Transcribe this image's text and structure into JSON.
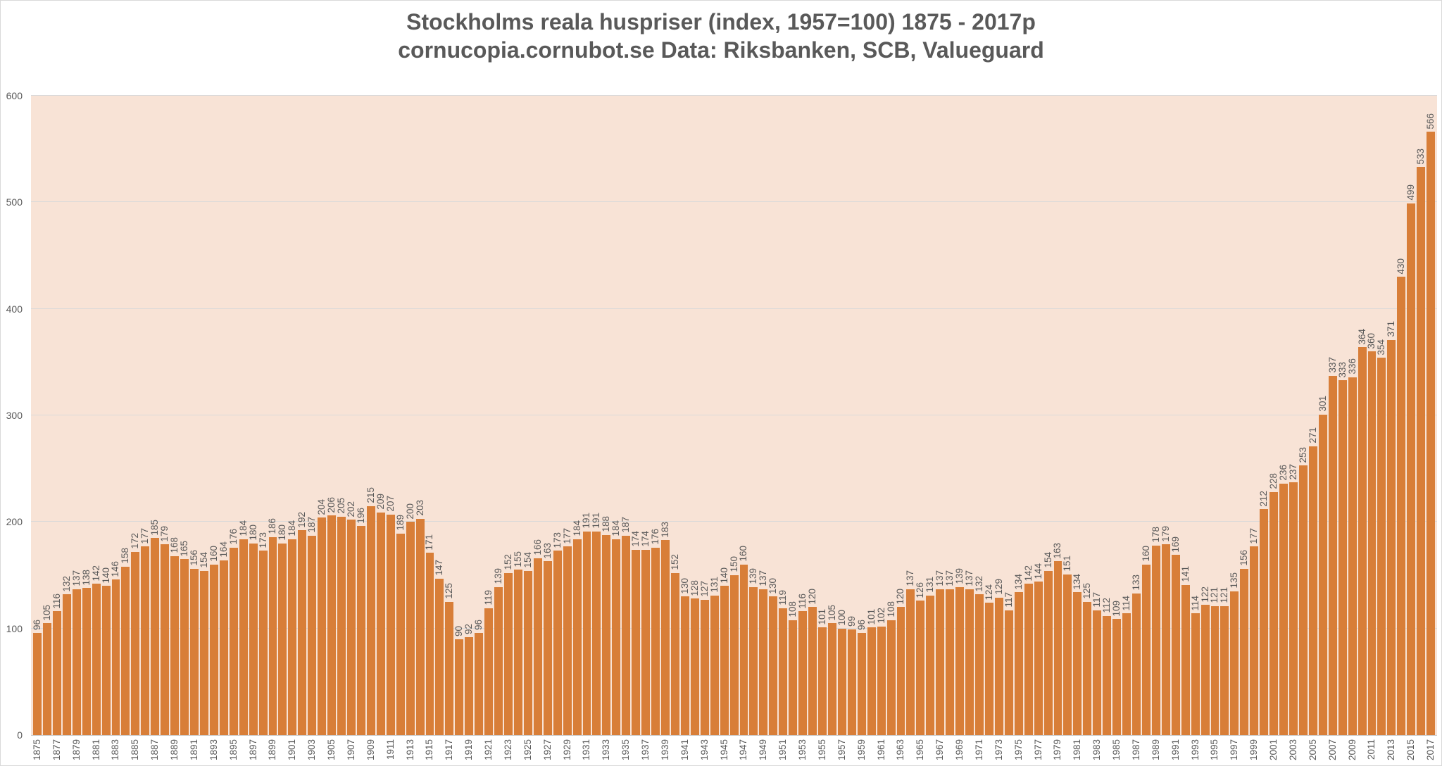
{
  "title": {
    "line1": "Stockholms reala huspriser (index, 1957=100) 1875 - 2017p",
    "line2": "cornucopia.cornubot.se Data: Riksbanken, SCB, Valueguard"
  },
  "colors": {
    "bar": "#d87e38",
    "plot_background": "#f8e3d6",
    "gridline": "#d9d9d9",
    "axis_text": "#595959",
    "title_text": "#595959",
    "page_background": "#ffffff"
  },
  "chart_data": {
    "type": "bar",
    "title": "Stockholms reala huspriser (index, 1957=100) 1875 - 2017p",
    "subtitle": "cornucopia.cornubot.se Data: Riksbanken, SCB, Valueguard",
    "xlabel": "",
    "ylabel": "",
    "ylim": [
      0,
      600
    ],
    "yticks": [
      0,
      100,
      200,
      300,
      400,
      500,
      600
    ],
    "xtick_interval": 2,
    "grid": true,
    "legend": "none",
    "bar_value_labels": true,
    "x": [
      1875,
      1876,
      1877,
      1878,
      1879,
      1880,
      1881,
      1882,
      1883,
      1884,
      1885,
      1886,
      1887,
      1888,
      1889,
      1890,
      1891,
      1892,
      1893,
      1894,
      1895,
      1896,
      1897,
      1898,
      1899,
      1900,
      1901,
      1902,
      1903,
      1904,
      1905,
      1906,
      1907,
      1908,
      1909,
      1910,
      1911,
      1912,
      1913,
      1914,
      1915,
      1916,
      1917,
      1918,
      1919,
      1920,
      1921,
      1922,
      1923,
      1924,
      1925,
      1926,
      1927,
      1928,
      1929,
      1930,
      1931,
      1932,
      1933,
      1934,
      1935,
      1936,
      1937,
      1938,
      1939,
      1940,
      1941,
      1942,
      1943,
      1944,
      1945,
      1946,
      1947,
      1948,
      1949,
      1950,
      1951,
      1952,
      1953,
      1954,
      1955,
      1956,
      1957,
      1958,
      1959,
      1960,
      1961,
      1962,
      1963,
      1964,
      1965,
      1966,
      1967,
      1968,
      1969,
      1970,
      1971,
      1972,
      1973,
      1974,
      1975,
      1976,
      1977,
      1978,
      1979,
      1980,
      1981,
      1982,
      1983,
      1984,
      1985,
      1986,
      1987,
      1988,
      1989,
      1990,
      1991,
      1992,
      1993,
      1994,
      1995,
      1996,
      1997,
      1998,
      1999,
      2000,
      2001,
      2002,
      2003,
      2004,
      2005,
      2006,
      2007,
      2008,
      2009,
      2010,
      2011,
      2012,
      2013,
      2014,
      2015,
      2016,
      2017
    ],
    "values": [
      96,
      105,
      116,
      132,
      137,
      138,
      142,
      140,
      146,
      158,
      172,
      177,
      185,
      179,
      168,
      165,
      156,
      154,
      160,
      164,
      176,
      184,
      180,
      173,
      186,
      180,
      184,
      192,
      187,
      204,
      206,
      205,
      202,
      196,
      215,
      209,
      207,
      189,
      200,
      203,
      171,
      147,
      125,
      90,
      92,
      96,
      119,
      139,
      152,
      155,
      154,
      166,
      163,
      173,
      177,
      184,
      191,
      191,
      188,
      184,
      187,
      174,
      174,
      176,
      183,
      152,
      130,
      128,
      127,
      131,
      140,
      150,
      160,
      139,
      137,
      130,
      119,
      108,
      116,
      120,
      101,
      105,
      100,
      99,
      96,
      101,
      102,
      108,
      120,
      137,
      126,
      131,
      137,
      137,
      139,
      137,
      132,
      124,
      129,
      117,
      134,
      142,
      144,
      154,
      163,
      151,
      134,
      125,
      117,
      112,
      109,
      114,
      133,
      160,
      178,
      179,
      169,
      141,
      114,
      122,
      121,
      121,
      135,
      156,
      177,
      212,
      228,
      236,
      237,
      253,
      271,
      301,
      337,
      333,
      336,
      364,
      360,
      354,
      371,
      430,
      499,
      533,
      566
    ]
  }
}
